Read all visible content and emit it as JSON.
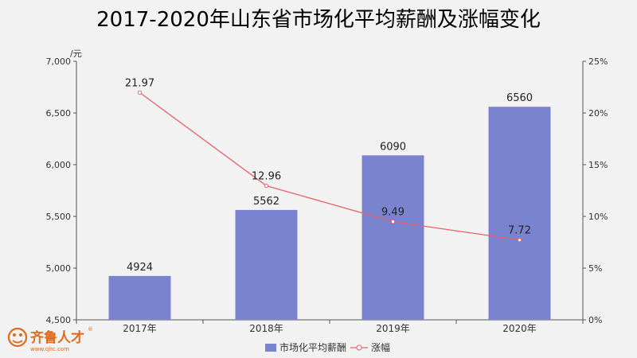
{
  "chart_data": {
    "type": "bar",
    "title": "2017-2020年山东省市场化平均薪酬及涨幅变化",
    "categories": [
      "2017年",
      "2018年",
      "2019年",
      "2020年"
    ],
    "left_axis": {
      "unit": "/元",
      "min": 4500,
      "max": 7000,
      "step": 500,
      "ticks": [
        "4,500",
        "5,000",
        "5,500",
        "6,000",
        "6,500",
        "7,000"
      ]
    },
    "right_axis": {
      "min": 0,
      "max": 25,
      "step": 5,
      "ticks": [
        "0%",
        "5%",
        "10%",
        "15%",
        "20%",
        "25%"
      ]
    },
    "series": [
      {
        "name": "市场化平均薪酬",
        "type": "bar",
        "axis": "left",
        "values": [
          4924,
          5562,
          6090,
          6560
        ],
        "labels": [
          "4924",
          "5562",
          "6090",
          "6560"
        ],
        "color": "#7983cf"
      },
      {
        "name": "涨幅",
        "type": "line",
        "axis": "right",
        "values": [
          21.97,
          12.96,
          9.49,
          7.72
        ],
        "labels": [
          "21.97",
          "12.96",
          "9.49",
          "7.72"
        ],
        "color": "#e8606a"
      }
    ],
    "grid": false,
    "legend_position": "bottom-center"
  },
  "logo": {
    "name": "齐鲁人才",
    "url": "www.qlrc.com",
    "mark": "®",
    "color": "#e06a1c"
  }
}
